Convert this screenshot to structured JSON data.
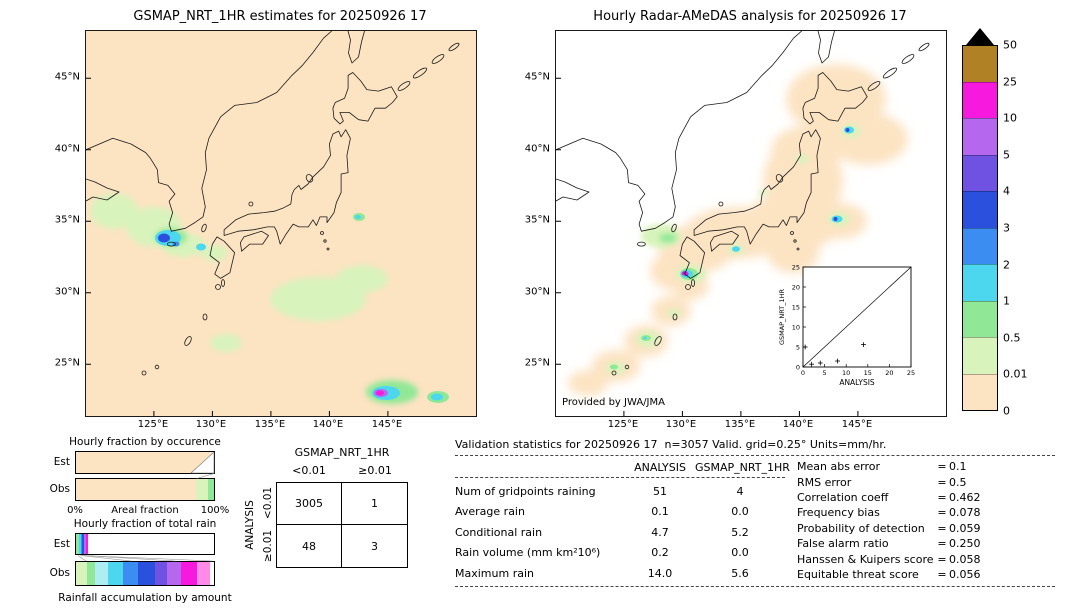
{
  "left_map": {
    "title": "GSMAP_NRT_1HR estimates for 20250926 17",
    "x_ticks": [
      "125°E",
      "130°E",
      "135°E",
      "140°E",
      "145°E"
    ],
    "y_ticks": [
      "45°N",
      "40°N",
      "35°N",
      "30°N",
      "25°N"
    ]
  },
  "right_map": {
    "title": "Hourly Radar-AMeDAS analysis for 20250926 17",
    "credit": "Provided by JWA/JMA",
    "x_ticks": [
      "125°E",
      "130°E",
      "135°E",
      "140°E",
      "145°E"
    ],
    "y_ticks": [
      "45°N",
      "40°N",
      "35°N",
      "30°N",
      "25°N"
    ],
    "inset": {
      "xlabel": "ANALYSIS",
      "ylabel": "GSMAP_NRT_1HR",
      "ticks": [
        0,
        5,
        10,
        15,
        20,
        25
      ],
      "points": [
        [
          0.5,
          5.0
        ],
        [
          2.0,
          0.7
        ],
        [
          4.0,
          1.0
        ],
        [
          8.0,
          1.5
        ],
        [
          14.0,
          5.6
        ]
      ]
    }
  },
  "colorbar": {
    "labels": [
      "50",
      "25",
      "10",
      "5",
      "4",
      "3",
      "2",
      "1",
      "0.5",
      "0.01",
      "0"
    ],
    "colors": [
      "#b08125",
      "#f719dd",
      "#b568ee",
      "#6f52e2",
      "#2a50dd",
      "#3b8df2",
      "#4cd7ee",
      "#90e896",
      "#d9f3bc",
      "#fce3c2"
    ]
  },
  "occurrence_chart": {
    "title": "Hourly fraction by occurence",
    "row_labels": [
      "Est",
      "Obs"
    ],
    "x_left": "0%",
    "x_right": "100%",
    "xlabel": "Areal fraction",
    "est_segments": [
      [
        "#fce3c2",
        100
      ]
    ],
    "obs_segments": [
      [
        "#fce3c2",
        87
      ],
      [
        "#d9f3bc",
        9
      ],
      [
        "#90e896",
        4
      ]
    ]
  },
  "totalrain_chart": {
    "title": "Hourly fraction of total rain",
    "row_labels": [
      "Est",
      "Obs"
    ],
    "caption": "Rainfall accumulation by amount",
    "est_segments": [
      [
        "#90e896",
        2
      ],
      [
        "#4cd7ee",
        1.5
      ],
      [
        "#3b8df2",
        1
      ],
      [
        "#2a50dd",
        1
      ],
      [
        "#b568ee",
        1.5
      ],
      [
        "#f719dd",
        2
      ],
      [
        "#ffffff",
        91
      ]
    ],
    "obs_segments": [
      [
        "#d9f3bc",
        8
      ],
      [
        "#90e896",
        6
      ],
      [
        "#aeeef2",
        9
      ],
      [
        "#4cd7ee",
        11
      ],
      [
        "#3b8df2",
        11
      ],
      [
        "#2a50dd",
        12
      ],
      [
        "#6f52e2",
        9
      ],
      [
        "#b568ee",
        10
      ],
      [
        "#f719dd",
        12
      ],
      [
        "#ff8ae8",
        9
      ],
      [
        "#ffffff",
        3
      ]
    ]
  },
  "contingency": {
    "title": "GSMAP_NRT_1HR",
    "side_label": "ANALYSIS",
    "col_labels": [
      "<0.01",
      "≥0.01"
    ],
    "row_labels": [
      "<0.01",
      "≥0.01"
    ],
    "cells": [
      [
        "3005",
        "1"
      ],
      [
        "48",
        "3"
      ]
    ]
  },
  "stats": {
    "title": "Validation statistics for 20250926 17  n=3057 Valid. grid=0.25° Units=mm/hr.",
    "columns": [
      "ANALYSIS",
      "GSMAP_NRT_1HR"
    ],
    "equals_sign": "=",
    "rows": [
      {
        "label": "Num of gridpoints raining",
        "analysis": "51",
        "gsmap": "4"
      },
      {
        "label": "Average rain",
        "analysis": "0.1",
        "gsmap": "0.0"
      },
      {
        "label": "Conditional rain",
        "analysis": "4.7",
        "gsmap": "5.2"
      },
      {
        "label": "Rain volume (mm km²10⁶)",
        "analysis": "0.2",
        "gsmap": "0.0"
      },
      {
        "label": "Maximum rain",
        "analysis": "14.0",
        "gsmap": "5.6"
      }
    ],
    "scores": [
      {
        "label": "Mean abs error",
        "value": "0.1"
      },
      {
        "label": "RMS error",
        "value": "0.5"
      },
      {
        "label": "Correlation coeff",
        "value": "0.462"
      },
      {
        "label": "Frequency bias",
        "value": "0.078"
      },
      {
        "label": "Probability of detection",
        "value": "0.059"
      },
      {
        "label": "False alarm ratio",
        "value": "0.250"
      },
      {
        "label": "Hanssen & Kuipers score",
        "value": "0.058"
      },
      {
        "label": "Equitable threat score",
        "value": "0.056"
      }
    ]
  },
  "chart_data": [
    {
      "type": "table",
      "title": "Contingency table of gridpoints (rows=ANALYSIS, columns=GSMAP_NRT_1HR, threshold 0.01 mm/hr)",
      "columns": [
        "<0.01",
        "≥0.01"
      ],
      "rows": [
        "<0.01",
        "≥0.01"
      ],
      "values": [
        [
          3005,
          1
        ],
        [
          48,
          3
        ]
      ]
    },
    {
      "type": "table",
      "title": "Validation statistics for 20250926 17, n=3057, grid=0.25°, units=mm/hr",
      "categories": [
        "Num of gridpoints raining",
        "Average rain",
        "Conditional rain",
        "Rain volume (mm km²10⁶)",
        "Maximum rain"
      ],
      "series": [
        {
          "name": "ANALYSIS",
          "values": [
            51,
            0.1,
            4.7,
            0.2,
            14.0
          ]
        },
        {
          "name": "GSMAP_NRT_1HR",
          "values": [
            4,
            0.0,
            5.2,
            0.0,
            5.6
          ]
        }
      ]
    },
    {
      "type": "table",
      "title": "Skill scores",
      "categories": [
        "Mean abs error",
        "RMS error",
        "Correlation coeff",
        "Frequency bias",
        "Probability of detection",
        "False alarm ratio",
        "Hanssen & Kuipers score",
        "Equitable threat score"
      ],
      "values": [
        0.1,
        0.5,
        0.462,
        0.078,
        0.059,
        0.25,
        0.058,
        0.056
      ]
    },
    {
      "type": "scatter",
      "title": "Inset: GSMAP_NRT_1HR vs ANALYSIS",
      "xlabel": "ANALYSIS",
      "ylabel": "GSMAP_NRT_1HR",
      "xlim": [
        0,
        25
      ],
      "ylim": [
        0,
        25
      ],
      "identity_line": true,
      "points": [
        [
          0.5,
          5.0
        ],
        [
          2.0,
          0.7
        ],
        [
          4.0,
          1.0
        ],
        [
          8.0,
          1.5
        ],
        [
          14.0,
          5.6
        ]
      ]
    },
    {
      "type": "heatmap",
      "title": "Rain-rate colour scale (mm/hr)",
      "levels": [
        0,
        0.01,
        0.5,
        1,
        2,
        3,
        4,
        5,
        10,
        25,
        50
      ],
      "colors_low_to_high": [
        "#fce3c2",
        "#d9f3bc",
        "#90e896",
        "#4cd7ee",
        "#3b8df2",
        "#2a50dd",
        "#6f52e2",
        "#b568ee",
        "#f719dd",
        "#b08125"
      ]
    }
  ]
}
